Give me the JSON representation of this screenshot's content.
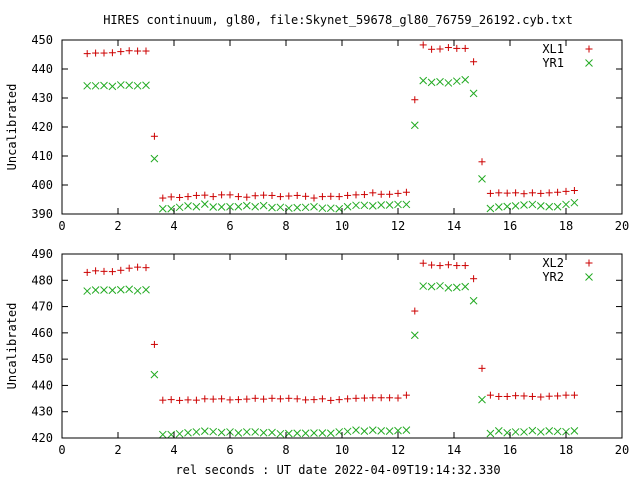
{
  "title": "HIRES continuum, gl80, file:Skynet_59678_gl80_76759_26192.cyb.txt",
  "xlabel": "rel seconds : UT date 2022-04-09T19:14:32.330",
  "colors": {
    "xl": "#cc0000",
    "yr": "#22aa22",
    "axis": "#000000"
  },
  "chart_data": [
    {
      "type": "scatter",
      "ylabel": "Uncalibrated",
      "xlim": [
        0,
        20
      ],
      "ylim": [
        390,
        450
      ],
      "xticks": [
        0,
        2,
        4,
        6,
        8,
        10,
        12,
        14,
        16,
        18,
        20
      ],
      "yticks": [
        390,
        400,
        410,
        420,
        430,
        440,
        450
      ],
      "grid": false,
      "legend": "top-right",
      "series": [
        {
          "name": "XL1",
          "marker": "plus",
          "x": [
            0.9,
            1.2,
            1.5,
            1.8,
            2.1,
            2.4,
            2.7,
            3.0,
            3.3,
            3.6,
            3.9,
            4.2,
            4.5,
            4.8,
            5.1,
            5.4,
            5.7,
            6.0,
            6.3,
            6.6,
            6.9,
            7.2,
            7.5,
            7.8,
            8.1,
            8.4,
            8.7,
            9.0,
            9.3,
            9.6,
            9.9,
            10.2,
            10.5,
            10.8,
            11.1,
            11.4,
            11.7,
            12.0,
            12.3,
            12.6,
            12.9,
            13.2,
            13.5,
            13.8,
            14.1,
            14.4,
            14.7,
            15.0,
            15.3,
            15.6,
            15.9,
            16.2,
            16.5,
            16.8,
            17.1,
            17.4,
            17.7,
            18.0,
            18.3
          ],
          "y": [
            445.3,
            445.5,
            445.5,
            445.6,
            446.0,
            446.3,
            446.2,
            446.2,
            416.8,
            395.5,
            395.9,
            395.7,
            396.0,
            396.4,
            396.5,
            396.0,
            396.6,
            396.6,
            396.0,
            395.8,
            396.3,
            396.5,
            396.4,
            396.0,
            396.2,
            396.4,
            396.1,
            395.5,
            396.0,
            396.1,
            396.0,
            396.4,
            396.6,
            396.7,
            397.3,
            396.8,
            396.8,
            397.1,
            397.5,
            429.4,
            448.3,
            446.8,
            446.9,
            447.4,
            447.1,
            447.1,
            442.5,
            408.0,
            397.1,
            397.3,
            397.2,
            397.3,
            397.0,
            397.3,
            397.1,
            397.3,
            397.5,
            397.8,
            398.1
          ]
        },
        {
          "name": "YR1",
          "marker": "cross",
          "x": [
            0.9,
            1.2,
            1.5,
            1.8,
            2.1,
            2.4,
            2.7,
            3.0,
            3.3,
            3.6,
            3.9,
            4.2,
            4.5,
            4.8,
            5.1,
            5.4,
            5.7,
            6.0,
            6.3,
            6.6,
            6.9,
            7.2,
            7.5,
            7.8,
            8.1,
            8.4,
            8.7,
            9.0,
            9.3,
            9.6,
            9.9,
            10.2,
            10.5,
            10.8,
            11.1,
            11.4,
            11.7,
            12.0,
            12.3,
            12.6,
            12.9,
            13.2,
            13.5,
            13.8,
            14.1,
            14.4,
            14.7,
            15.0,
            15.3,
            15.6,
            15.9,
            16.2,
            16.5,
            16.8,
            17.1,
            17.4,
            17.7,
            18.0,
            18.3
          ],
          "y": [
            434.2,
            434.2,
            434.3,
            434.0,
            434.5,
            434.4,
            434.2,
            434.4,
            409.1,
            391.8,
            391.8,
            392.3,
            392.8,
            392.5,
            393.4,
            392.4,
            392.4,
            392.5,
            392.5,
            392.9,
            392.5,
            392.9,
            392.2,
            392.3,
            392.0,
            392.2,
            392.3,
            392.5,
            392.0,
            392.0,
            391.8,
            392.5,
            393.0,
            393.0,
            392.8,
            393.1,
            393.1,
            393.3,
            393.3,
            420.6,
            436.0,
            435.4,
            435.6,
            435.2,
            435.8,
            436.3,
            431.6,
            402.1,
            391.9,
            392.4,
            392.6,
            392.8,
            393.1,
            393.3,
            392.8,
            392.5,
            392.5,
            393.3,
            393.9
          ]
        }
      ]
    },
    {
      "type": "scatter",
      "ylabel": "Uncalibrated",
      "xlim": [
        0,
        20
      ],
      "ylim": [
        420,
        490
      ],
      "xticks": [
        0,
        2,
        4,
        6,
        8,
        10,
        12,
        14,
        16,
        18,
        20
      ],
      "yticks": [
        420,
        430,
        440,
        450,
        460,
        470,
        480,
        490
      ],
      "grid": false,
      "legend": "top-right",
      "series": [
        {
          "name": "XL2",
          "marker": "plus",
          "x": [
            0.9,
            1.2,
            1.5,
            1.8,
            2.1,
            2.4,
            2.7,
            3.0,
            3.3,
            3.6,
            3.9,
            4.2,
            4.5,
            4.8,
            5.1,
            5.4,
            5.7,
            6.0,
            6.3,
            6.6,
            6.9,
            7.2,
            7.5,
            7.8,
            8.1,
            8.4,
            8.7,
            9.0,
            9.3,
            9.6,
            9.9,
            10.2,
            10.5,
            10.8,
            11.1,
            11.4,
            11.7,
            12.0,
            12.3,
            12.6,
            12.9,
            13.2,
            13.5,
            13.8,
            14.1,
            14.4,
            14.7,
            15.0,
            15.3,
            15.6,
            15.9,
            16.2,
            16.5,
            16.8,
            17.1,
            17.4,
            17.7,
            18.0,
            18.3
          ],
          "y": [
            483.0,
            483.6,
            483.4,
            483.3,
            483.8,
            484.6,
            485.0,
            484.8,
            455.6,
            434.4,
            434.6,
            434.3,
            434.5,
            434.4,
            434.9,
            434.8,
            434.9,
            434.5,
            434.6,
            434.8,
            435.1,
            434.8,
            435.1,
            434.9,
            435.1,
            434.9,
            434.5,
            434.6,
            434.9,
            434.3,
            434.6,
            434.9,
            435.1,
            435.2,
            435.3,
            435.3,
            435.3,
            435.2,
            436.3,
            468.3,
            486.5,
            485.8,
            485.6,
            485.9,
            485.6,
            485.6,
            480.6,
            446.5,
            436.3,
            435.8,
            435.8,
            436.1,
            436.0,
            435.8,
            435.6,
            435.9,
            436.0,
            436.3,
            436.3
          ]
        },
        {
          "name": "YR2",
          "marker": "cross",
          "x": [
            0.9,
            1.2,
            1.5,
            1.8,
            2.1,
            2.4,
            2.7,
            3.0,
            3.3,
            3.6,
            3.9,
            4.2,
            4.5,
            4.8,
            5.1,
            5.4,
            5.7,
            6.0,
            6.3,
            6.6,
            6.9,
            7.2,
            7.5,
            7.8,
            8.1,
            8.4,
            8.7,
            9.0,
            9.3,
            9.6,
            9.9,
            10.2,
            10.5,
            10.8,
            11.1,
            11.4,
            11.7,
            12.0,
            12.3,
            12.6,
            12.9,
            13.2,
            13.5,
            13.8,
            14.1,
            14.4,
            14.7,
            15.0,
            15.3,
            15.6,
            15.9,
            16.2,
            16.5,
            16.8,
            17.1,
            17.4,
            17.7,
            18.0,
            18.3
          ],
          "y": [
            475.9,
            476.3,
            476.3,
            476.2,
            476.4,
            476.6,
            476.0,
            476.4,
            444.1,
            421.3,
            421.3,
            421.6,
            422.0,
            422.3,
            422.6,
            422.4,
            422.1,
            422.3,
            421.9,
            422.3,
            422.3,
            422.0,
            422.1,
            421.6,
            421.7,
            421.8,
            421.8,
            421.9,
            421.9,
            421.8,
            422.3,
            422.5,
            423.0,
            422.6,
            423.0,
            422.7,
            422.6,
            422.8,
            423.0,
            459.1,
            477.8,
            477.6,
            477.9,
            477.1,
            477.3,
            477.6,
            472.2,
            434.6,
            421.7,
            422.7,
            422.0,
            422.3,
            422.3,
            422.8,
            422.3,
            422.7,
            422.5,
            422.4,
            422.7
          ]
        }
      ]
    }
  ]
}
